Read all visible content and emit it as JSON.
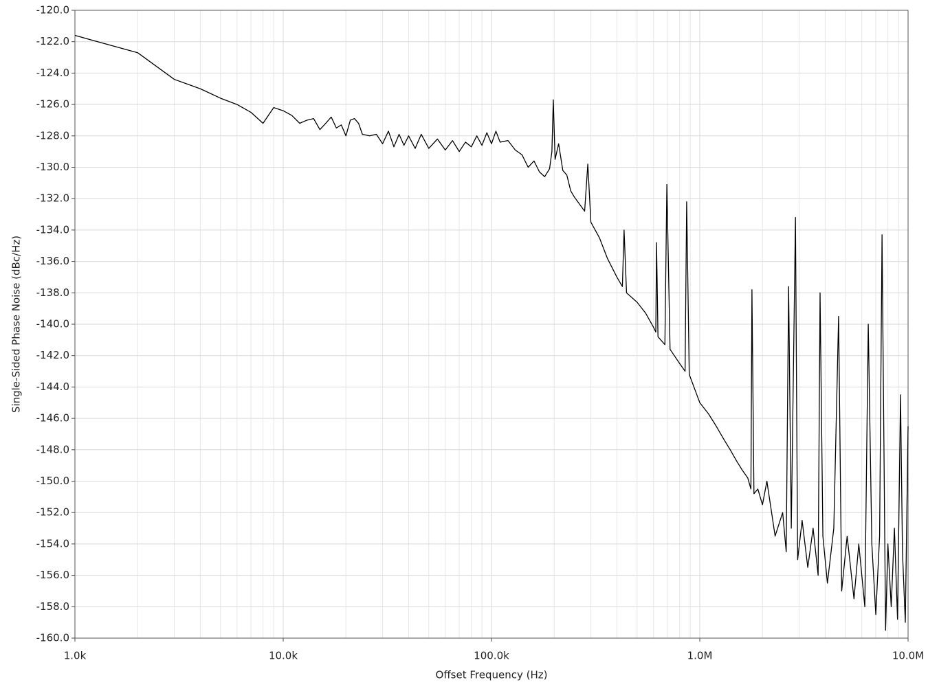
{
  "chart_data": {
    "type": "line",
    "xlabel": "Offset Frequency (Hz)",
    "ylabel": "Single-Sided Phase Noise (dBc/Hz)",
    "xscale": "log",
    "grid": true,
    "minor_grid": true,
    "xlim": [
      1000,
      10000000
    ],
    "ylim": [
      -160,
      -120
    ],
    "xticks": [
      {
        "value": 1000,
        "label": "1.0k"
      },
      {
        "value": 10000,
        "label": "10.0k"
      },
      {
        "value": 100000,
        "label": "100.0k"
      },
      {
        "value": 1000000,
        "label": "1.0M"
      },
      {
        "value": 10000000,
        "label": "10.0M"
      }
    ],
    "yticks": [
      {
        "value": -120,
        "label": "-120.0"
      },
      {
        "value": -122,
        "label": "-122.0"
      },
      {
        "value": -124,
        "label": "-124.0"
      },
      {
        "value": -126,
        "label": "-126.0"
      },
      {
        "value": -128,
        "label": "-128.0"
      },
      {
        "value": -130,
        "label": "-130.0"
      },
      {
        "value": -132,
        "label": "-132.0"
      },
      {
        "value": -134,
        "label": "-134.0"
      },
      {
        "value": -136,
        "label": "-136.0"
      },
      {
        "value": -138,
        "label": "-138.0"
      },
      {
        "value": -140,
        "label": "-140.0"
      },
      {
        "value": -142,
        "label": "-142.0"
      },
      {
        "value": -144,
        "label": "-144.0"
      },
      {
        "value": -146,
        "label": "-146.0"
      },
      {
        "value": -148,
        "label": "-148.0"
      },
      {
        "value": -150,
        "label": "-150.0"
      },
      {
        "value": -152,
        "label": "-152.0"
      },
      {
        "value": -154,
        "label": "-154.0"
      },
      {
        "value": -156,
        "label": "-156.0"
      },
      {
        "value": -158,
        "label": "-158.0"
      },
      {
        "value": -160,
        "label": "-160.0"
      }
    ],
    "x": [
      1000,
      2000,
      3000,
      4000,
      5000,
      6000,
      7000,
      8000,
      9000,
      10000,
      11000,
      12000,
      13000,
      14000,
      15000,
      16000,
      17000,
      18000,
      19000,
      20000,
      21000,
      22000,
      23000,
      24000,
      26000,
      28000,
      30000,
      32000,
      34000,
      36000,
      38000,
      40000,
      43000,
      46000,
      50000,
      55000,
      60000,
      65000,
      70000,
      75000,
      80000,
      85000,
      90000,
      95000,
      100000,
      105000,
      110000,
      120000,
      130000,
      140000,
      150000,
      160000,
      170000,
      180000,
      190000,
      195000,
      198000,
      202000,
      210000,
      220000,
      230000,
      240000,
      250000,
      280000,
      290000,
      300000,
      330000,
      360000,
      400000,
      425000,
      433000,
      445000,
      500000,
      550000,
      600000,
      615000,
      620000,
      630000,
      680000,
      695000,
      720000,
      800000,
      850000,
      865000,
      890000,
      1000000,
      1100000,
      1200000,
      1300000,
      1400000,
      1500000,
      1600000,
      1700000,
      1760000,
      1780000,
      1820000,
      1900000,
      2000000,
      2100000,
      2300000,
      2500000,
      2600000,
      2670000,
      2750000,
      2880000,
      2950000,
      3100000,
      3300000,
      3500000,
      3700000,
      3780000,
      3900000,
      4100000,
      4400000,
      4640000,
      4800000,
      5100000,
      5500000,
      5800000,
      6200000,
      6440000,
      6700000,
      7000000,
      7300000,
      7500000,
      7800000,
      8000000,
      8300000,
      8600000,
      8900000,
      9200000,
      9400000,
      9700000,
      10000000
    ],
    "series": [
      {
        "color": "#000000",
        "values": [
          -121.6,
          -122.7,
          -124.4,
          -125.0,
          -125.6,
          -126.0,
          -126.5,
          -127.2,
          -126.2,
          -126.4,
          -126.7,
          -127.2,
          -127.0,
          -126.9,
          -127.6,
          -127.2,
          -126.8,
          -127.5,
          -127.3,
          -128.0,
          -127.0,
          -126.9,
          -127.2,
          -127.9,
          -128.0,
          -127.9,
          -128.5,
          -127.7,
          -128.7,
          -127.9,
          -128.6,
          -128.0,
          -128.8,
          -127.9,
          -128.8,
          -128.2,
          -128.9,
          -128.3,
          -129.0,
          -128.4,
          -128.7,
          -128.0,
          -128.6,
          -127.8,
          -128.5,
          -127.7,
          -128.4,
          -128.3,
          -128.9,
          -129.2,
          -130.0,
          -129.6,
          -130.3,
          -130.6,
          -130.1,
          -129.0,
          -125.7,
          -129.5,
          -128.5,
          -130.2,
          -130.5,
          -131.5,
          -131.9,
          -132.8,
          -129.8,
          -133.5,
          -134.5,
          -135.8,
          -137.0,
          -137.6,
          -134.0,
          -138.0,
          -138.6,
          -139.3,
          -140.2,
          -140.5,
          -134.8,
          -140.8,
          -141.3,
          -131.1,
          -141.6,
          -142.5,
          -143.0,
          -132.2,
          -143.2,
          -145.0,
          -145.7,
          -146.5,
          -147.3,
          -148.0,
          -148.7,
          -149.3,
          -149.8,
          -150.5,
          -137.8,
          -150.8,
          -150.5,
          -151.5,
          -150.0,
          -153.5,
          -152.0,
          -154.5,
          -137.6,
          -153.0,
          -133.2,
          -155.0,
          -152.5,
          -155.5,
          -153.0,
          -156.0,
          -138.0,
          -153.5,
          -156.5,
          -153.0,
          -139.5,
          -157.0,
          -153.5,
          -157.5,
          -154.0,
          -158.0,
          -140.0,
          -154.0,
          -158.5,
          -153.5,
          -134.3,
          -159.5,
          -154.0,
          -158.0,
          -153.0,
          -158.8,
          -144.5,
          -154.5,
          -159.0,
          -146.5
        ]
      }
    ]
  }
}
